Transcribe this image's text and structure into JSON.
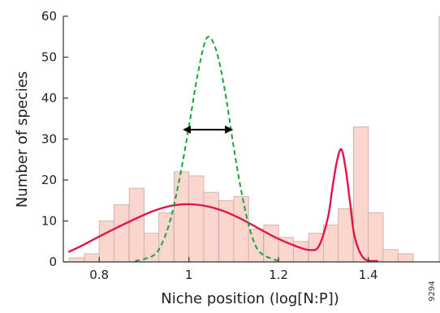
{
  "chart_data": {
    "type": "bar",
    "xlabel": "Niche position (log[N:P])",
    "ylabel": "Number of species",
    "xlim": [
      0.72,
      1.56
    ],
    "ylim": [
      0,
      60
    ],
    "x_ticks": [
      0.8,
      1.0,
      1.2,
      1.4
    ],
    "x_tick_labels": [
      "0.8",
      "1",
      "1.2",
      "1.4"
    ],
    "y_ticks": [
      0,
      10,
      20,
      30,
      40,
      50,
      60
    ],
    "y_tick_labels": [
      "0",
      "10",
      "20",
      "30",
      "40",
      "50",
      "60"
    ],
    "grid": false,
    "histogram": {
      "bin_width": 0.0333,
      "bin_starts": [
        0.733,
        0.767,
        0.8,
        0.833,
        0.867,
        0.9,
        0.933,
        0.967,
        1.0,
        1.033,
        1.067,
        1.1,
        1.133,
        1.167,
        1.2,
        1.233,
        1.267,
        1.3,
        1.333,
        1.367,
        1.4,
        1.433,
        1.467,
        1.5
      ],
      "values": [
        1,
        2,
        10,
        14,
        18,
        7,
        12,
        22,
        21,
        17,
        15,
        16,
        8,
        9,
        6,
        5,
        7,
        9,
        13,
        33,
        12,
        3,
        2,
        0
      ],
      "color": "#fad6cf"
    },
    "series": [
      {
        "style": "solid",
        "color": "#e0164a",
        "x": [
          0.733,
          0.76,
          0.8,
          0.84,
          0.88,
          0.92,
          0.96,
          1.0,
          1.04,
          1.08,
          1.12,
          1.16,
          1.2,
          1.24,
          1.27,
          1.29,
          1.31,
          1.32,
          1.33,
          1.34,
          1.35,
          1.36,
          1.37,
          1.39,
          1.42
        ],
        "y": [
          2.5,
          3.9,
          6.2,
          8.4,
          10.5,
          12.4,
          13.7,
          14.1,
          13.6,
          12.3,
          10.3,
          7.9,
          5.6,
          3.8,
          2.9,
          3.9,
          10.8,
          18.0,
          24.5,
          27.5,
          22.5,
          14.0,
          6.0,
          0.9,
          0.2
        ]
      },
      {
        "style": "dashed",
        "color": "#1aa33b",
        "x": [
          0.88,
          0.92,
          0.94,
          0.96,
          0.98,
          1.0,
          1.02,
          1.04,
          1.06,
          1.08,
          1.1,
          1.12,
          1.14,
          1.16,
          1.2
        ],
        "y": [
          0.2,
          1.5,
          4.5,
          10.8,
          20.8,
          33.0,
          46.0,
          54.7,
          52.0,
          42.0,
          28.0,
          15.5,
          6.5,
          2.2,
          0.2
        ]
      }
    ],
    "annotations": [
      {
        "type": "double-arrow",
        "x_start": 0.99,
        "x_end": 1.095,
        "y": 32.3
      }
    ]
  },
  "figure_id": "9294"
}
